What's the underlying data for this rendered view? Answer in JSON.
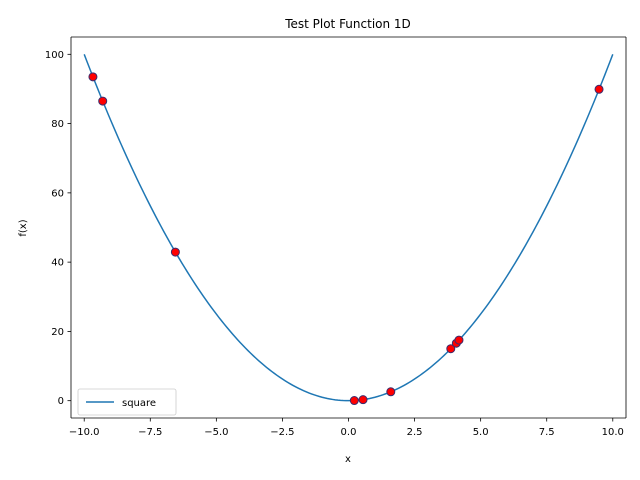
{
  "chart_data": {
    "type": "line",
    "title": "Test Plot Function 1D",
    "xlabel": "x",
    "ylabel": "f(x)",
    "xlim": [
      -10.5,
      10.5
    ],
    "ylim": [
      -5,
      105
    ],
    "xticks": [
      -10.0,
      -7.5,
      -5.0,
      -2.5,
      0.0,
      2.5,
      5.0,
      7.5,
      10.0
    ],
    "xtick_labels": [
      "−10.0",
      "−7.5",
      "−5.0",
      "−2.5",
      "0.0",
      "2.5",
      "5.0",
      "7.5",
      "10.0"
    ],
    "yticks": [
      0,
      20,
      40,
      60,
      80,
      100
    ],
    "ytick_labels": [
      "0",
      "20",
      "40",
      "60",
      "80",
      "100"
    ],
    "grid": false,
    "legend_position": "lower-left",
    "series": [
      {
        "name": "square",
        "type": "line",
        "function": "x^2",
        "x_range": [
          -10,
          10
        ],
        "color": "#1f77b4"
      },
      {
        "type": "scatter",
        "color": "#ff0000",
        "edge_color": "#3b2c6e",
        "points": [
          {
            "x": -9.67,
            "y": 93.5
          },
          {
            "x": -9.3,
            "y": 86.5
          },
          {
            "x": -6.55,
            "y": 42.9
          },
          {
            "x": 0.22,
            "y": 0.05
          },
          {
            "x": 0.55,
            "y": 0.3
          },
          {
            "x": 1.6,
            "y": 2.56
          },
          {
            "x": 3.87,
            "y": 15.0
          },
          {
            "x": 4.08,
            "y": 16.6
          },
          {
            "x": 4.18,
            "y": 17.5
          },
          {
            "x": 9.48,
            "y": 89.9
          }
        ]
      }
    ]
  }
}
